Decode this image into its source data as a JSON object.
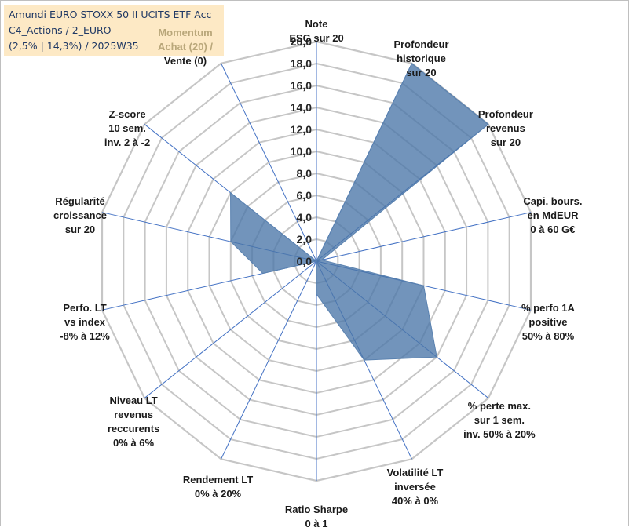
{
  "title_box": {
    "line1": "Amundi EURO STOXX 50 II UCITS ETF Acc",
    "line2": "C4_Actions / 2_EURO",
    "line3": "(2,5% | 14,3%) / 2025W35"
  },
  "chart_data": {
    "type": "radar",
    "rmin": 0,
    "rmax": 20,
    "ticks": [
      "0,0",
      "2,0",
      "4,0",
      "6,0",
      "8,0",
      "10,0",
      "12,0",
      "14,0",
      "16,0",
      "18,0",
      "20,0"
    ],
    "axes": [
      [
        "Note",
        "ESG sur 20"
      ],
      [
        "Profondeur",
        "historique",
        "sur 20"
      ],
      [
        "Profondeur",
        "revenus",
        "sur 20"
      ],
      [
        "Capi. bours.",
        "en MdEUR",
        "0 à 60 G€"
      ],
      [
        "% perfo 1A",
        "positive",
        "50% à 80%"
      ],
      [
        "% perte max.",
        "sur 1 sem.",
        "inv. 50% à 20%"
      ],
      [
        "Volatilité LT",
        "inversée",
        "40% à 0%"
      ],
      [
        "Ratio Sharpe",
        "0 à 1"
      ],
      [
        "Rendement LT",
        "0% à 20%"
      ],
      [
        "Niveau LT",
        "revenus",
        "reccurents",
        "0% à 6%"
      ],
      [
        "Perfo. LT",
        "vs index",
        "-8% à 12%"
      ],
      [
        "Régularité",
        "croissance",
        "sur 20"
      ],
      [
        "Z-score",
        "10 sem.",
        "inv. 2 à -2"
      ],
      [
        "Momentum",
        "Achat (20) /",
        "Vente (0)"
      ]
    ],
    "series": [
      {
        "values": [
          0,
          20,
          20,
          0.5,
          10,
          14,
          10,
          3,
          0,
          0,
          5,
          8,
          10,
          0
        ]
      }
    ],
    "colors": {
      "fill": "#4a76a8",
      "grid": "#c6c6c6",
      "spoke": "#4472c4"
    },
    "grid": true,
    "legend": "none"
  }
}
